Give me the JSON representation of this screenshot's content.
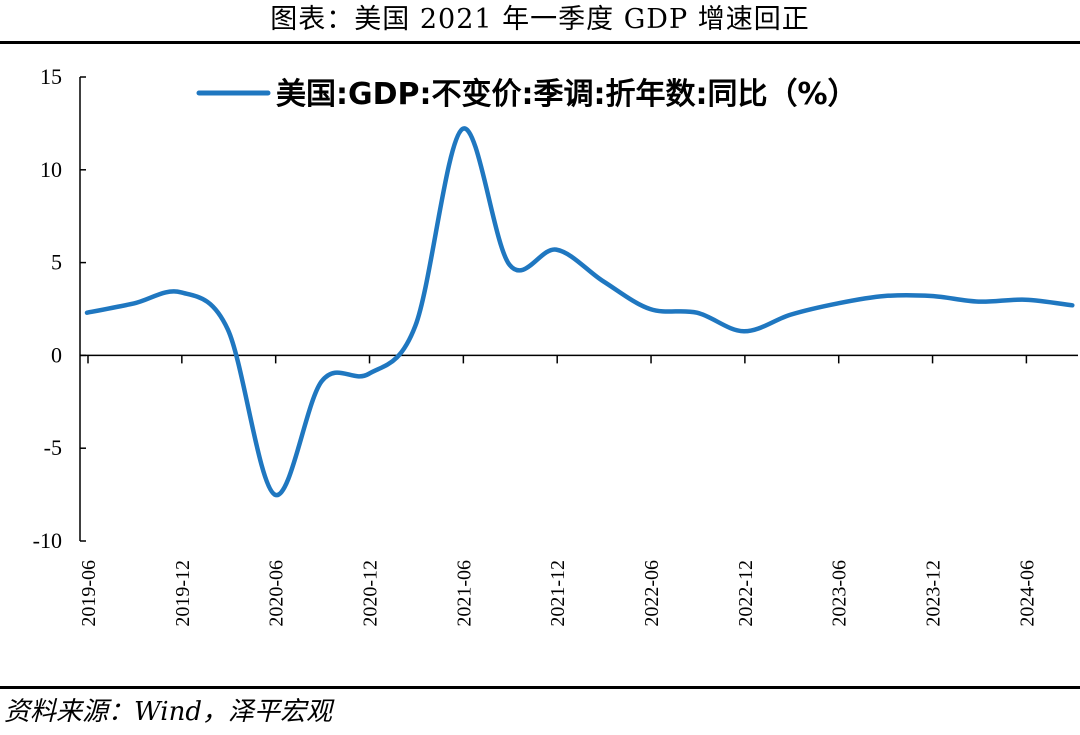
{
  "header": {
    "title": "图表：美国 2021 年一季度 GDP 增速回正"
  },
  "footer": {
    "source": "资料来源：Wind，泽平宏观"
  },
  "chart_data": {
    "type": "line",
    "title": "",
    "xlabel": "",
    "ylabel": "",
    "ylim": [
      -10,
      15
    ],
    "yticks": [
      "15",
      "10",
      "5",
      "0",
      "-5",
      "-10"
    ],
    "xticks": [
      "2019-06",
      "2019-12",
      "2020-06",
      "2020-12",
      "2021-06",
      "2021-12",
      "2022-06",
      "2022-12",
      "2023-06",
      "2023-12",
      "2024-06"
    ],
    "grid": false,
    "legend": "top",
    "colors": {
      "series": "#1f77c0",
      "axis": "#000000"
    },
    "series": [
      {
        "name": "美国:GDP:不变价:季调:折年数:同比（%）",
        "x": [
          "2019-06",
          "2019-09",
          "2019-12",
          "2020-03",
          "2020-06",
          "2020-09",
          "2020-12",
          "2021-03",
          "2021-06",
          "2021-09",
          "2021-12",
          "2022-03",
          "2022-06",
          "2022-09",
          "2022-12",
          "2023-03",
          "2023-06",
          "2023-09",
          "2023-12",
          "2024-03",
          "2024-06",
          "2024-09"
        ],
        "values": [
          2.3,
          2.8,
          3.4,
          1.4,
          -7.5,
          -1.4,
          -1.0,
          1.6,
          12.2,
          4.9,
          5.7,
          4.0,
          2.5,
          2.3,
          1.3,
          2.2,
          2.8,
          3.2,
          3.2,
          2.9,
          3.0,
          2.7
        ]
      }
    ]
  }
}
